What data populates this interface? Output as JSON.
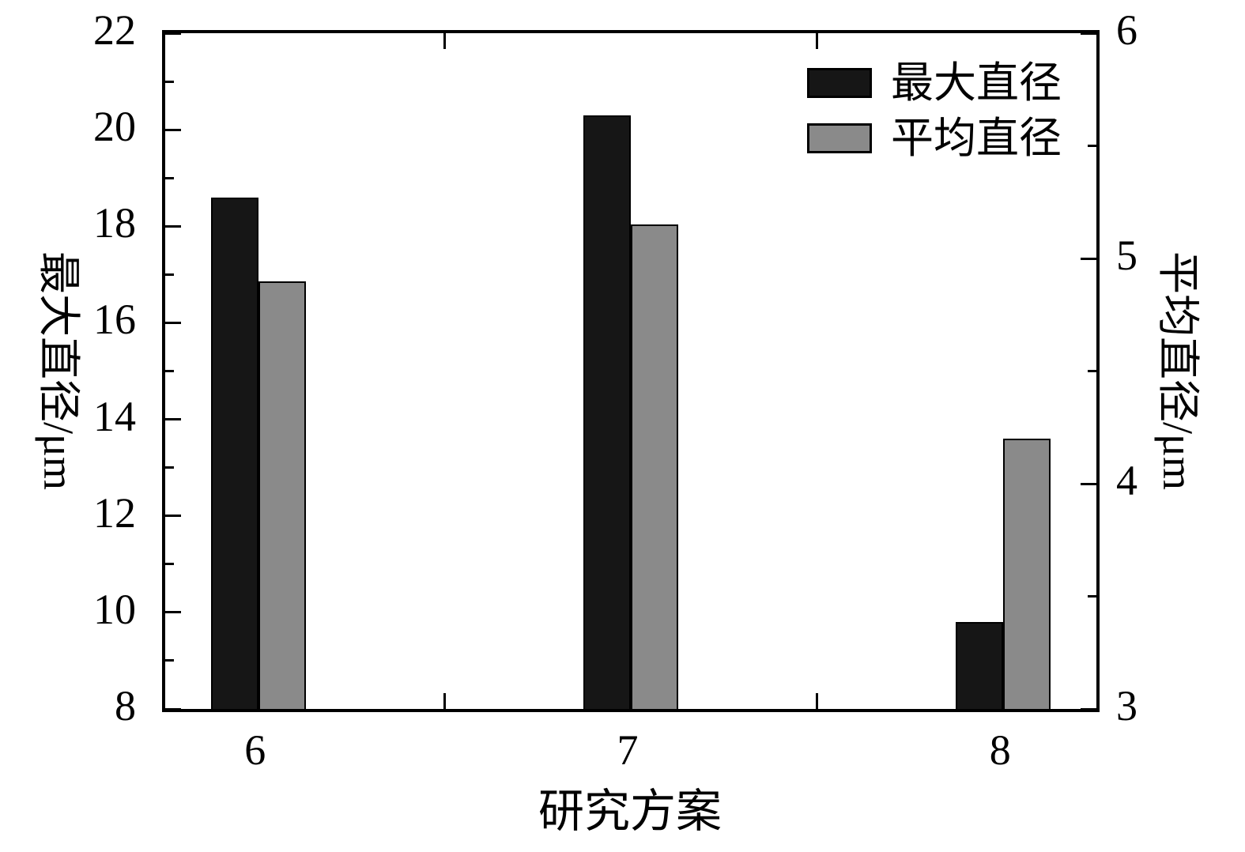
{
  "chart_data": {
    "type": "bar",
    "title": "",
    "xlabel": "研究方案",
    "categories": [
      "6",
      "7",
      "8"
    ],
    "category_centers": [
      0.1,
      0.5,
      0.9
    ],
    "x_boundary_ticks": [
      0.3,
      0.7
    ],
    "grid": false,
    "left_axis": {
      "label": "最大直径/μm",
      "min": 8,
      "max": 22,
      "major_ticks": [
        8,
        10,
        12,
        14,
        16,
        18,
        20,
        22
      ],
      "minor_ticks": [
        9,
        11,
        13,
        15,
        17,
        19,
        21
      ]
    },
    "right_axis": {
      "label": "平均直径/μm",
      "min": 3,
      "max": 6,
      "major_ticks": [
        3,
        4,
        5,
        6
      ],
      "minor_ticks": [
        3.5,
        4.5,
        5.5
      ]
    },
    "series": [
      {
        "key": "max-diameter",
        "name": "最大直径",
        "axis": "left",
        "color": "#161616",
        "border": "#000000",
        "values": [
          18.6,
          20.3,
          9.8
        ]
      },
      {
        "key": "avg-diameter",
        "name": "平均直径",
        "axis": "right",
        "color": "#8a8a8a",
        "border": "#000000",
        "values": [
          4.9,
          5.15,
          4.2
        ]
      }
    ],
    "legend": {
      "position": "top-right",
      "entries": [
        "最大直径",
        "平均直径"
      ]
    },
    "colors": {
      "background": "#ffffff",
      "axis": "#000000"
    }
  }
}
